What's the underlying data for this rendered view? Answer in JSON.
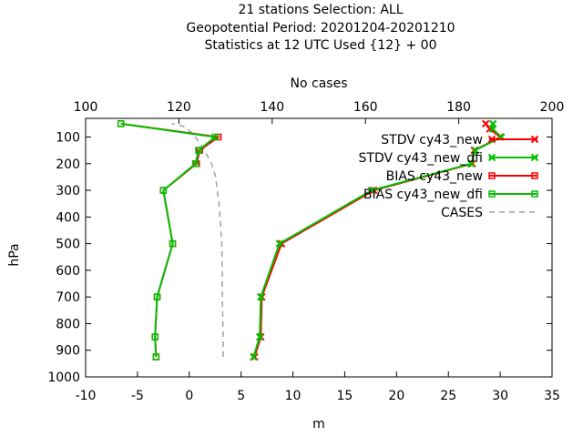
{
  "chart_data": {
    "type": "line",
    "title_lines": [
      "21 stations Selection: ALL",
      "Geopotential  Period: 20201204-20201210",
      "Statistics at 12 UTC  Used {12} + 00"
    ],
    "xlabel": "m",
    "ylabel": "hPa",
    "x2label": "No cases",
    "xlim": [
      -10,
      35
    ],
    "ylim": [
      1000,
      30
    ],
    "x2lim": [
      100,
      200
    ],
    "y_inverted": true,
    "grid": false,
    "legend_position": "top-right",
    "x_ticks": [
      "-10",
      "-5",
      "0",
      "5",
      "10",
      "15",
      "20",
      "25",
      "30",
      "35"
    ],
    "x2_ticks": [
      "100",
      "120",
      "140",
      "160",
      "180",
      "200"
    ],
    "y_ticks": [
      "100",
      "200",
      "300",
      "400",
      "500",
      "600",
      "700",
      "800",
      "900",
      "1000"
    ],
    "series": [
      {
        "name": "STDV cy43_new",
        "color": "#ff0000",
        "marker": "x",
        "axis": "x1",
        "x": [
          6.3,
          6.9,
          7.0,
          8.9,
          17.8,
          27.3,
          27.5,
          30.0,
          29.0,
          28.6
        ],
        "y": [
          925,
          850,
          700,
          500,
          300,
          200,
          150,
          100,
          70,
          50
        ]
      },
      {
        "name": "STDV cy43_new_dfi",
        "color": "#00c000",
        "marker": "x",
        "axis": "x1",
        "x": [
          6.2,
          6.8,
          6.9,
          8.7,
          17.6,
          27.2,
          27.6,
          30.1,
          29.3,
          29.3
        ],
        "y": [
          925,
          850,
          700,
          500,
          300,
          200,
          150,
          100,
          70,
          50
        ]
      },
      {
        "name": "BIAS cy43_new",
        "color": "#ff0000",
        "marker": "square",
        "axis": "x1",
        "x": [
          -3.2,
          -3.3,
          -3.1,
          -1.6,
          -2.5,
          0.7,
          1.0,
          2.8,
          -6.6
        ],
        "y": [
          925,
          850,
          700,
          500,
          300,
          200,
          150,
          100,
          50
        ]
      },
      {
        "name": "BIAS cy43_new_dfi",
        "color": "#00c000",
        "marker": "square",
        "axis": "x1",
        "x": [
          -3.2,
          -3.3,
          -3.1,
          -1.6,
          -2.5,
          0.6,
          0.9,
          2.5,
          -6.6
        ],
        "y": [
          925,
          850,
          700,
          500,
          300,
          200,
          150,
          100,
          50
        ]
      },
      {
        "name": "CASES",
        "color": "#a0a0a0",
        "marker": "none",
        "dashed": true,
        "axis": "x2",
        "x": [
          129.5,
          129.5,
          129.3,
          129.3,
          129.2,
          129.0,
          128.8,
          128.6,
          128.2,
          127.9,
          127.0,
          125.5,
          123.5,
          122.5,
          121.0,
          118.5
        ],
        "y": [
          925,
          850,
          700,
          600,
          500,
          450,
          400,
          350,
          300,
          250,
          200,
          150,
          100,
          80,
          60,
          50
        ]
      }
    ]
  }
}
